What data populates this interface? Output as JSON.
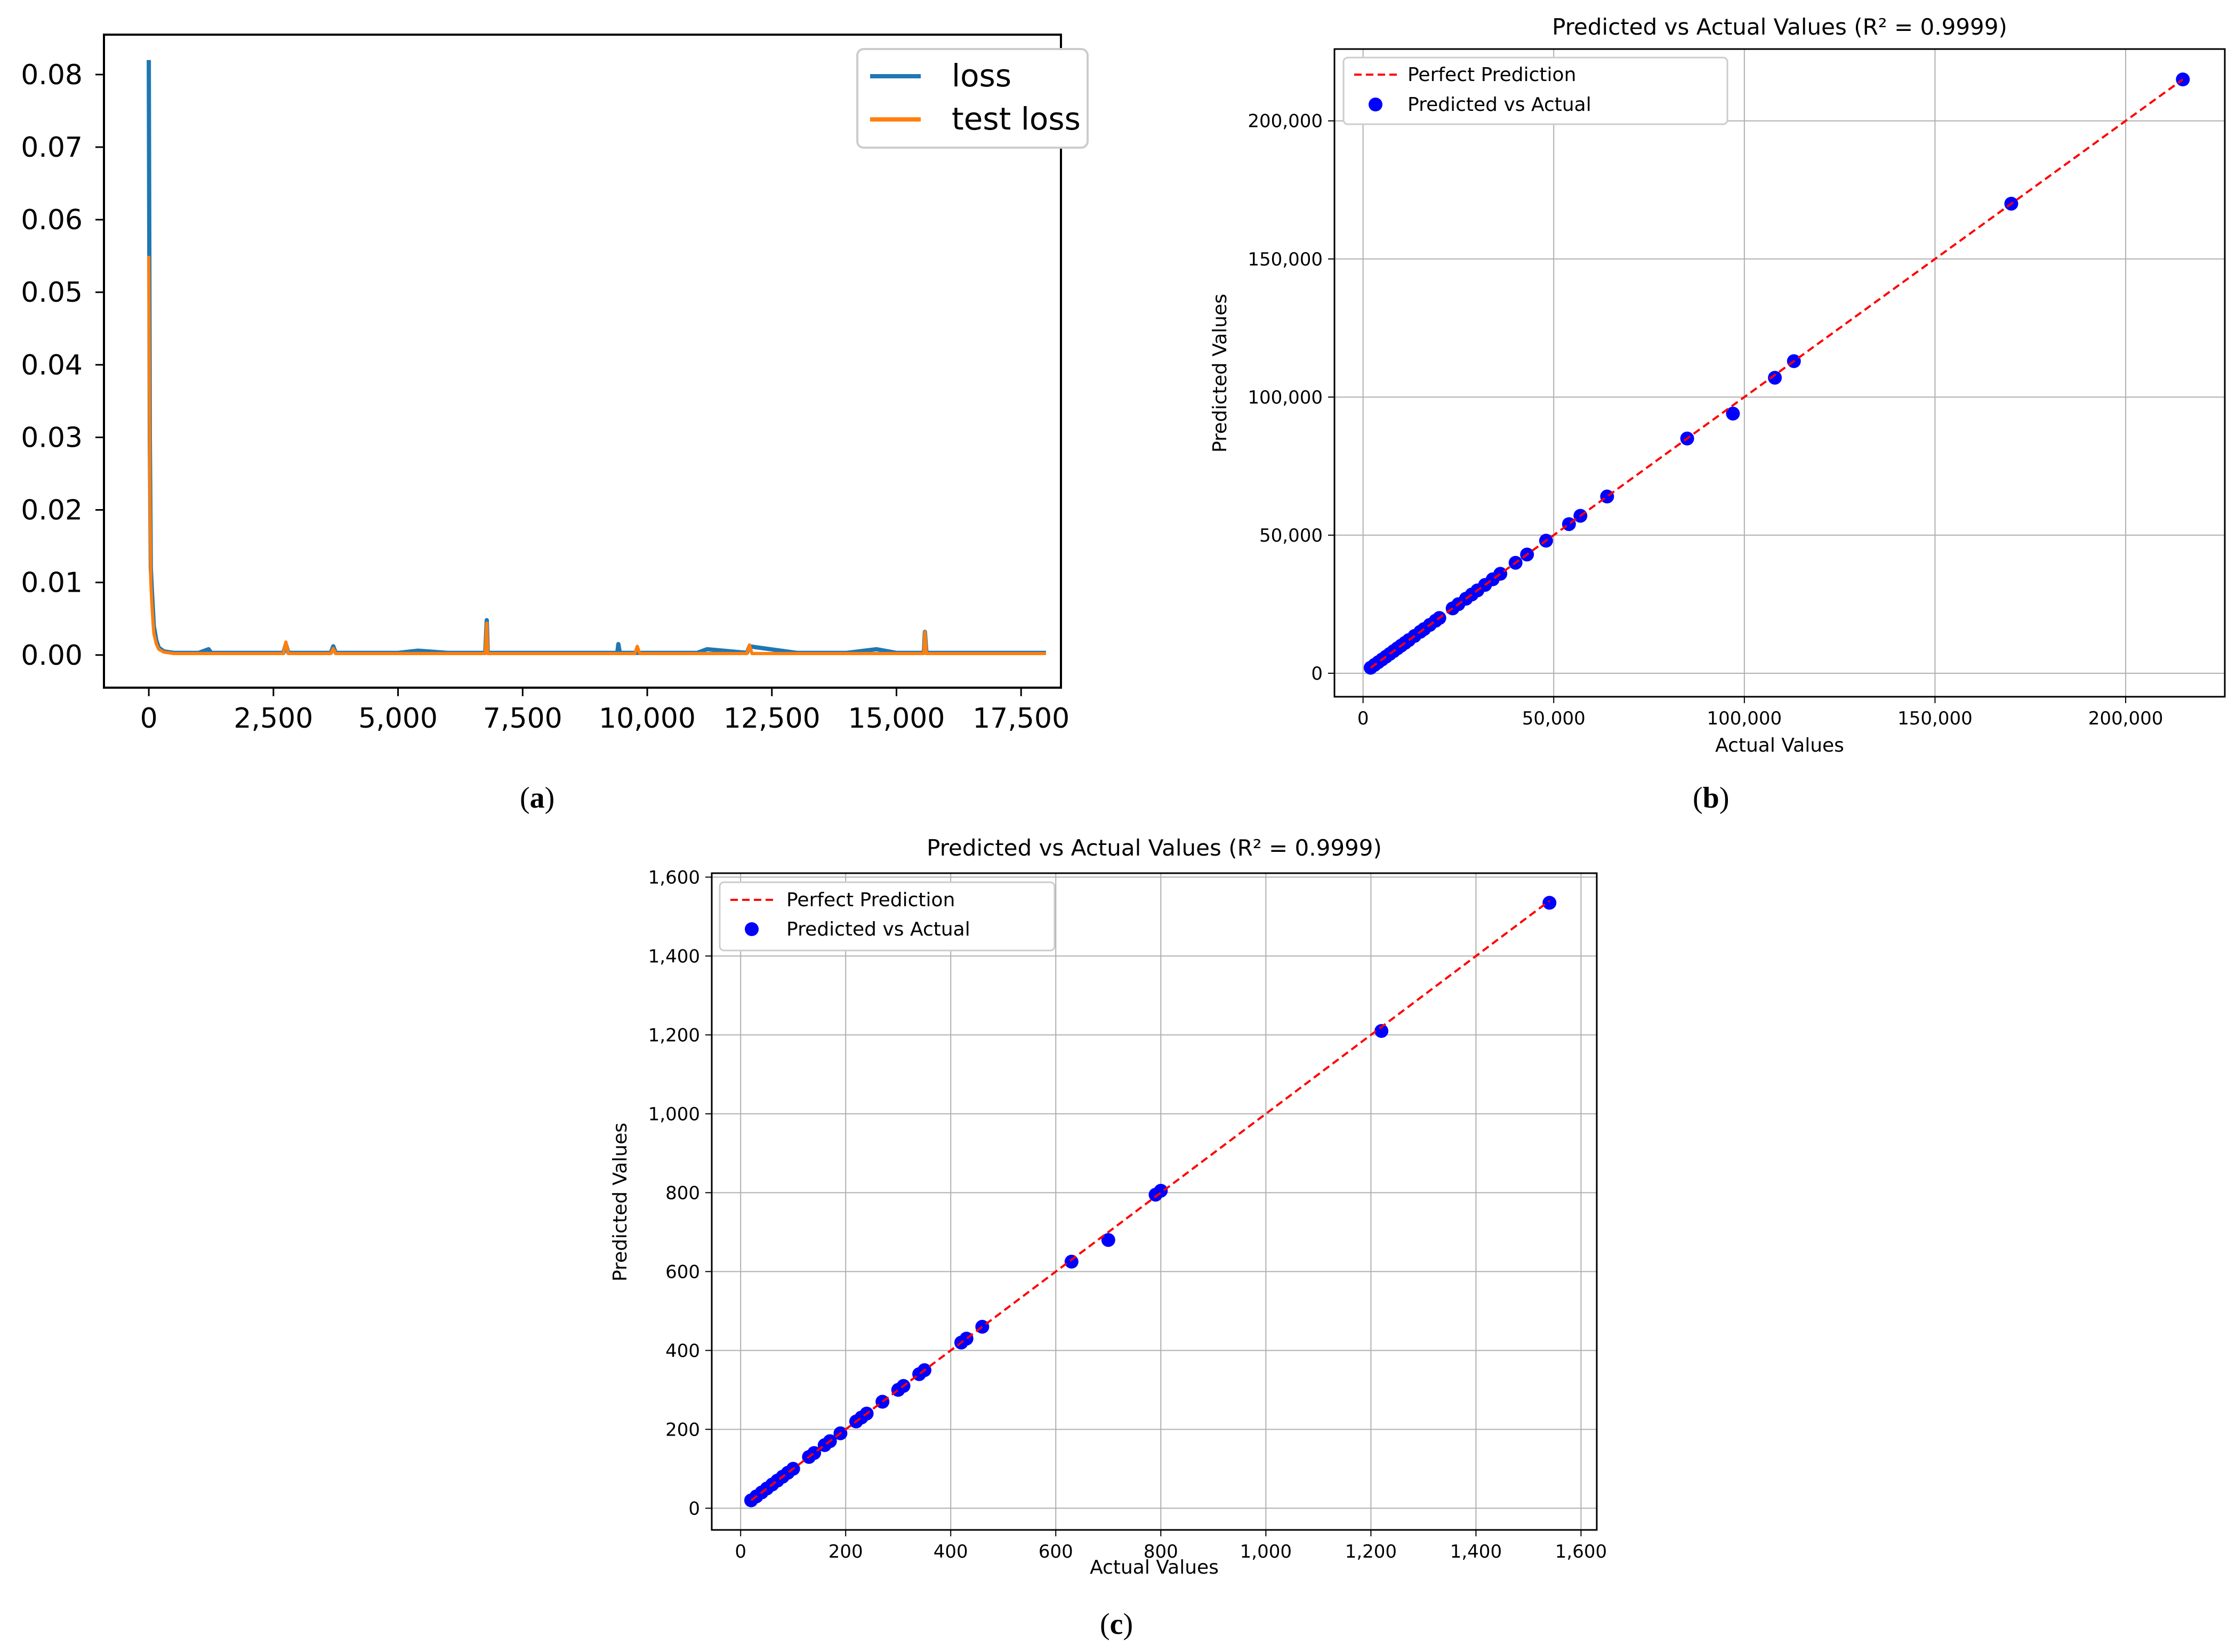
{
  "chart_data": [
    {
      "type": "line",
      "caption": "a",
      "title": "",
      "xlabel": "",
      "ylabel": "",
      "xlim": [
        -900,
        18300
      ],
      "ylim": [
        -0.0045,
        0.0855
      ],
      "xticks": [
        0,
        2500,
        5000,
        7500,
        10000,
        12500,
        15000,
        17500
      ],
      "xtick_labels": [
        "0",
        "2,500",
        "5,000",
        "7,500",
        "10,000",
        "12,500",
        "15,000",
        "17,500"
      ],
      "yticks": [
        0.0,
        0.01,
        0.02,
        0.03,
        0.04,
        0.05,
        0.06,
        0.07,
        0.08
      ],
      "ytick_labels": [
        "0.00",
        "0.01",
        "0.02",
        "0.03",
        "0.04",
        "0.05",
        "0.06",
        "0.07",
        "0.08"
      ],
      "grid": false,
      "legend_position": "top-right",
      "series": [
        {
          "name": "loss",
          "color": "#1f77b4",
          "x": [
            0,
            20,
            40,
            60,
            100,
            150,
            200,
            300,
            500,
            1000,
            1200,
            1250,
            1500,
            2000,
            2700,
            2750,
            2800,
            3000,
            3650,
            3700,
            3750,
            4000,
            5000,
            5400,
            6000,
            6750,
            6780,
            6800,
            7500,
            8000,
            9000,
            9400,
            9420,
            9450,
            9800,
            10000,
            11000,
            11200,
            12000,
            12050,
            13000,
            14000,
            14600,
            15000,
            15550,
            15570,
            15600,
            16000,
            17000,
            18000
          ],
          "y": [
            0.082,
            0.03,
            0.012,
            0.009,
            0.004,
            0.002,
            0.001,
            0.0005,
            0.0003,
            0.0003,
            0.0008,
            0.0003,
            0.0003,
            0.0003,
            0.0003,
            0.0015,
            0.0003,
            0.0003,
            0.0003,
            0.0012,
            0.0003,
            0.0003,
            0.0003,
            0.0006,
            0.0003,
            0.0003,
            0.0048,
            0.0003,
            0.0003,
            0.0003,
            0.0003,
            0.0003,
            0.0015,
            0.0003,
            0.0003,
            0.0003,
            0.0003,
            0.0008,
            0.0003,
            0.0012,
            0.0003,
            0.0003,
            0.0008,
            0.0003,
            0.0003,
            0.0032,
            0.0003,
            0.0003,
            0.0003,
            0.0003
          ]
        },
        {
          "name": "test loss",
          "color": "#ff7f0e",
          "x": [
            0,
            20,
            40,
            60,
            100,
            150,
            200,
            300,
            500,
            1000,
            1500,
            2000,
            2700,
            2750,
            2800,
            3000,
            3650,
            3700,
            3750,
            4000,
            5000,
            6000,
            6750,
            6780,
            6800,
            7500,
            8000,
            9000,
            9750,
            9800,
            9850,
            10000,
            11000,
            12000,
            12050,
            12100,
            13000,
            14000,
            15000,
            15550,
            15570,
            15600,
            16000,
            17000,
            18000
          ],
          "y": [
            0.055,
            0.025,
            0.01,
            0.007,
            0.003,
            0.0015,
            0.0008,
            0.0004,
            0.0002,
            0.0002,
            0.0002,
            0.0002,
            0.0002,
            0.0018,
            0.0002,
            0.0002,
            0.0002,
            0.0009,
            0.0002,
            0.0002,
            0.0002,
            0.0002,
            0.0002,
            0.0044,
            0.0002,
            0.0002,
            0.0002,
            0.0002,
            0.0002,
            0.0012,
            0.0002,
            0.0002,
            0.0002,
            0.0002,
            0.0014,
            0.0002,
            0.0002,
            0.0002,
            0.0002,
            0.0002,
            0.0032,
            0.0002,
            0.0002,
            0.0002,
            0.0002
          ]
        }
      ]
    },
    {
      "type": "scatter",
      "caption": "b",
      "title": "Predicted vs Actual Values (R² = 0.9999)",
      "xlabel": "Actual Values",
      "ylabel": "Predicted Values",
      "xlim": [
        -7500,
        226000
      ],
      "ylim": [
        -8500,
        226000
      ],
      "xticks": [
        0,
        50000,
        100000,
        150000,
        200000
      ],
      "xtick_labels": [
        "0",
        "50,000",
        "100,000",
        "150,000",
        "200,000"
      ],
      "yticks": [
        0,
        50000,
        100000,
        150000,
        200000
      ],
      "ytick_labels": [
        "0",
        "50,000",
        "100,000",
        "150,000",
        "200,000"
      ],
      "grid": true,
      "legend_position": "top-left",
      "line": {
        "name": "Perfect Prediction",
        "color": "#ff0000",
        "x": [
          2000,
          215000
        ],
        "y": [
          2000,
          215000
        ]
      },
      "points": {
        "name": "Predicted vs Actual",
        "color": "#0000ff",
        "x": [
          2000,
          3000,
          4000,
          5000,
          6000,
          7000,
          8000,
          9000,
          10000,
          11000,
          12000,
          13500,
          15000,
          16000,
          17500,
          19000,
          20000,
          23500,
          25000,
          27000,
          28500,
          30000,
          32000,
          34000,
          36000,
          40000,
          43000,
          48000,
          54000,
          57000,
          64000,
          85000,
          97000,
          108000,
          113000,
          170000,
          215000
        ],
        "y": [
          2000,
          3000,
          4000,
          5000,
          6000,
          7000,
          8000,
          9000,
          10000,
          11000,
          12000,
          13500,
          15000,
          16000,
          17500,
          19000,
          20000,
          23500,
          25000,
          27000,
          28500,
          30000,
          32000,
          34000,
          36000,
          40000,
          43000,
          48000,
          54000,
          57000,
          64000,
          85000,
          94000,
          107000,
          113000,
          170000,
          215000
        ]
      }
    },
    {
      "type": "scatter",
      "caption": "c",
      "title": "Predicted vs Actual Values (R² = 0.9999)",
      "xlabel": "Actual Values",
      "ylabel": "Predicted Values",
      "xlim": [
        -55,
        1630
      ],
      "ylim": [
        -55,
        1610
      ],
      "xticks": [
        0,
        200,
        400,
        600,
        800,
        1000,
        1200,
        1400,
        1600
      ],
      "xtick_labels": [
        "0",
        "200",
        "400",
        "600",
        "800",
        "1,000",
        "1,200",
        "1,400",
        "1,600"
      ],
      "yticks": [
        0,
        200,
        400,
        600,
        800,
        1000,
        1200,
        1400,
        1600
      ],
      "ytick_labels": [
        "0",
        "200",
        "400",
        "600",
        "800",
        "1,000",
        "1,200",
        "1,400",
        "1,600"
      ],
      "grid": true,
      "legend_position": "top-left",
      "line": {
        "name": "Perfect Prediction",
        "color": "#ff0000",
        "x": [
          20,
          1540
        ],
        "y": [
          20,
          1540
        ]
      },
      "points": {
        "name": "Predicted vs Actual",
        "color": "#0000ff",
        "x": [
          20,
          30,
          40,
          50,
          60,
          70,
          80,
          90,
          100,
          130,
          140,
          160,
          170,
          190,
          220,
          230,
          240,
          270,
          300,
          310,
          340,
          350,
          420,
          430,
          460,
          630,
          700,
          790,
          800,
          1220,
          1540
        ],
        "y": [
          20,
          30,
          40,
          50,
          60,
          70,
          80,
          90,
          100,
          130,
          140,
          160,
          170,
          190,
          220,
          230,
          240,
          270,
          300,
          310,
          340,
          350,
          420,
          430,
          460,
          625,
          680,
          795,
          805,
          1210,
          1535
        ]
      }
    }
  ]
}
